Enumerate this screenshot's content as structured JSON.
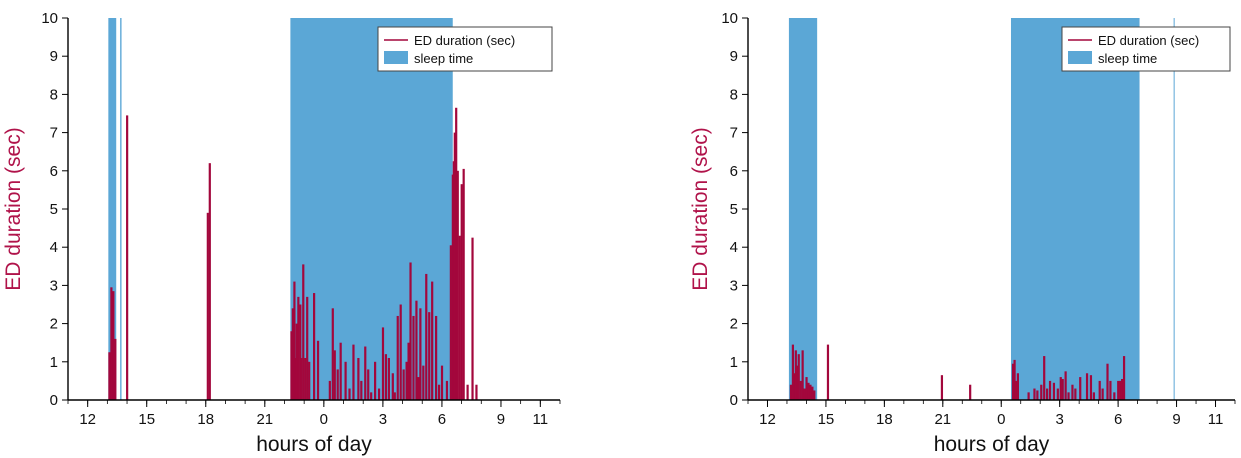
{
  "chart_data": [
    {
      "type": "bar",
      "ylabel": "ED duration (sec)",
      "xlabel": "hours of day",
      "ylim": [
        0,
        10
      ],
      "yticks": [
        "0",
        "1",
        "2",
        "3",
        "4",
        "5",
        "6",
        "7",
        "8",
        "9",
        "10"
      ],
      "xlim": [
        11.0,
        36.0
      ],
      "xticks": [
        {
          "x": 12,
          "label": "12"
        },
        {
          "x": 15,
          "label": "15"
        },
        {
          "x": 18,
          "label": "18"
        },
        {
          "x": 21,
          "label": "21"
        },
        {
          "x": 24,
          "label": "0"
        },
        {
          "x": 27,
          "label": "3"
        },
        {
          "x": 30,
          "label": "6"
        },
        {
          "x": 33,
          "label": "9"
        },
        {
          "x": 35,
          "label": "11"
        }
      ],
      "legend": {
        "position": "top-right",
        "items": [
          "ED duration (sec)",
          "sleep time"
        ]
      },
      "colors": {
        "ed": "#a3073c",
        "sleep": "#5ba7d6"
      },
      "sleep_intervals": [
        [
          13.05,
          13.45
        ],
        [
          13.65,
          13.72
        ],
        [
          22.3,
          30.55
        ]
      ],
      "series": [
        {
          "name": "ED duration (sec)",
          "x": [
            13.1,
            13.2,
            13.3,
            13.35,
            13.4,
            14.0,
            18.1,
            18.2,
            22.35,
            22.42,
            22.5,
            22.55,
            22.62,
            22.7,
            22.8,
            22.85,
            22.95,
            23.05,
            23.15,
            23.25,
            23.5,
            23.7,
            24.3,
            24.45,
            24.55,
            24.7,
            24.85,
            25.1,
            25.3,
            25.5,
            25.75,
            25.9,
            26.1,
            26.25,
            26.4,
            26.6,
            26.8,
            27.0,
            27.15,
            27.3,
            27.5,
            27.6,
            27.75,
            27.9,
            28.05,
            28.2,
            28.3,
            28.4,
            28.55,
            28.7,
            28.8,
            28.9,
            29.05,
            29.2,
            29.35,
            29.5,
            29.7,
            29.85,
            30.0,
            30.25,
            30.45,
            30.55,
            30.6,
            30.65,
            30.72,
            30.8,
            30.9,
            31.0,
            31.1,
            31.3,
            31.55,
            31.75
          ],
          "values": [
            1.25,
            2.95,
            2.85,
            0.5,
            1.6,
            7.45,
            4.9,
            6.2,
            1.8,
            2.4,
            3.1,
            1.1,
            2.0,
            2.7,
            2.5,
            1.1,
            3.55,
            1.1,
            2.7,
            1.0,
            2.8,
            1.55,
            0.5,
            2.4,
            1.3,
            0.8,
            1.5,
            1.0,
            0.3,
            1.45,
            1.1,
            0.5,
            1.4,
            0.8,
            0.2,
            1.0,
            0.3,
            1.9,
            1.2,
            1.1,
            0.7,
            0.2,
            2.2,
            2.5,
            0.8,
            1.0,
            1.5,
            3.6,
            2.2,
            2.6,
            0.6,
            2.4,
            0.9,
            3.3,
            2.3,
            3.1,
            2.2,
            0.4,
            0.9,
            0.5,
            4.05,
            5.9,
            6.25,
            7.0,
            7.65,
            6.0,
            4.3,
            5.65,
            6.05,
            0.4,
            4.25,
            0.4
          ]
        }
      ]
    },
    {
      "type": "bar",
      "ylabel": "ED duration (sec)",
      "xlabel": "hours of day",
      "ylim": [
        0,
        10
      ],
      "yticks": [
        "0",
        "1",
        "2",
        "3",
        "4",
        "5",
        "6",
        "7",
        "8",
        "9",
        "10"
      ],
      "xlim": [
        11.0,
        36.0
      ],
      "xticks": [
        {
          "x": 12,
          "label": "12"
        },
        {
          "x": 15,
          "label": "15"
        },
        {
          "x": 18,
          "label": "18"
        },
        {
          "x": 21,
          "label": "21"
        },
        {
          "x": 24,
          "label": "0"
        },
        {
          "x": 27,
          "label": "3"
        },
        {
          "x": 30,
          "label": "6"
        },
        {
          "x": 33,
          "label": "9"
        },
        {
          "x": 35,
          "label": "11"
        }
      ],
      "legend": {
        "position": "top-right",
        "items": [
          "ED duration (sec)",
          "sleep time"
        ]
      },
      "colors": {
        "ed": "#a3073c",
        "sleep": "#5ba7d6"
      },
      "sleep_intervals": [
        [
          13.1,
          14.55
        ],
        [
          24.5,
          31.1
        ],
        [
          32.85,
          32.9
        ]
      ],
      "series": [
        {
          "name": "ED duration (sec)",
          "x": [
            13.2,
            13.3,
            13.38,
            13.45,
            13.52,
            13.6,
            13.7,
            13.8,
            13.9,
            14.0,
            14.1,
            14.2,
            14.3,
            14.4,
            15.1,
            20.95,
            22.4,
            24.6,
            24.68,
            24.75,
            24.85,
            25.4,
            25.7,
            25.85,
            26.05,
            26.2,
            26.35,
            26.5,
            26.7,
            26.9,
            27.05,
            27.15,
            27.3,
            27.45,
            27.65,
            27.8,
            28.05,
            28.4,
            28.6,
            28.75,
            29.05,
            29.2,
            29.45,
            29.6,
            29.8,
            30.0,
            30.1,
            30.2,
            30.3
          ],
          "values": [
            0.4,
            1.45,
            0.7,
            1.3,
            0.9,
            1.2,
            0.5,
            1.3,
            0.3,
            0.6,
            0.45,
            0.4,
            0.35,
            0.25,
            1.45,
            0.65,
            0.4,
            0.95,
            1.05,
            0.5,
            0.7,
            0.2,
            0.3,
            0.25,
            0.4,
            1.15,
            0.3,
            0.5,
            0.45,
            0.3,
            0.6,
            0.55,
            0.75,
            0.2,
            0.4,
            0.3,
            0.6,
            0.7,
            0.65,
            0.2,
            0.5,
            0.3,
            0.95,
            0.5,
            0.2,
            0.5,
            0.5,
            0.55,
            1.15
          ]
        }
      ]
    }
  ]
}
